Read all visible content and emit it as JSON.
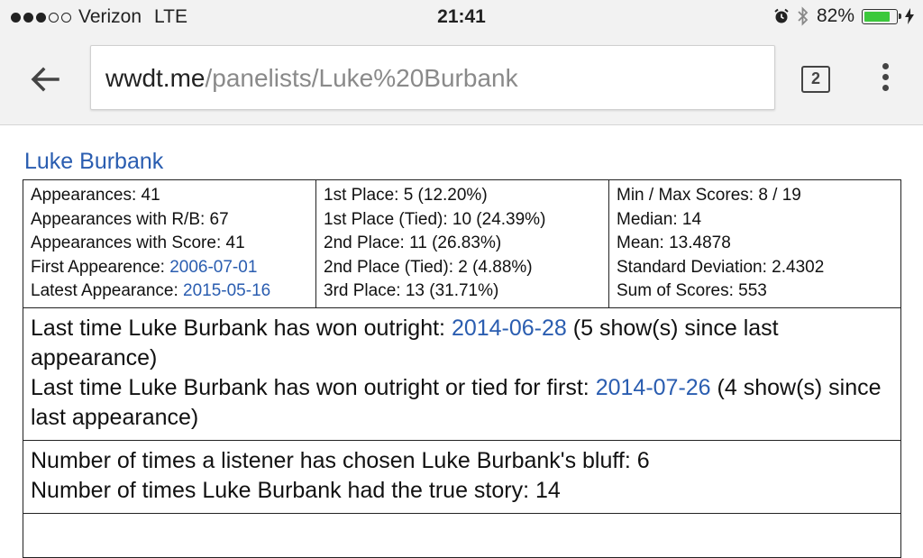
{
  "status_bar": {
    "carrier": "Verizon",
    "network": "LTE",
    "time": "21:41",
    "battery_percent": "82%",
    "battery_level": 0.82,
    "signal_bars_filled": 3,
    "signal_bars_total": 5,
    "icons": [
      "alarm-icon",
      "bluetooth-icon",
      "charging-bolt-icon"
    ]
  },
  "browser": {
    "url_host": "wwdt.me",
    "url_path": "/panelists/Luke%20Burbank",
    "tab_count": "2",
    "icons": [
      "back-arrow-icon",
      "tabs-icon",
      "overflow-menu-icon"
    ]
  },
  "page": {
    "title": "Luke Burbank",
    "col1": {
      "appearances": "Appearances: 41",
      "appearances_rb": "Appearances with R/B: 67",
      "appearances_score": "Appearances with Score: 41",
      "first_label": "First Appearence: ",
      "first_date": "2006-07-01",
      "latest_label": "Latest Appearance: ",
      "latest_date": "2015-05-16"
    },
    "col2": {
      "first_place": "1st Place: 5 (12.20%)",
      "first_place_tied": "1st Place (Tied): 10 (24.39%)",
      "second_place": "2nd Place: 11 (26.83%)",
      "second_place_tied": "2nd Place (Tied): 2 (4.88%)",
      "third_place": "3rd Place: 13 (31.71%)"
    },
    "col3": {
      "min_max": "Min / Max Scores: 8 / 19",
      "median": "Median: 14",
      "mean": "Mean: 13.4878",
      "std_dev": "Standard Deviation: 2.4302",
      "sum": "Sum of Scores: 553"
    },
    "wins": {
      "outright_prefix": "Last time Luke Burbank has won outright: ",
      "outright_date": "2014-06-28",
      "outright_suffix": " (5 show(s) since last appearance)",
      "tied_prefix": "Last time Luke Burbank has won outright or tied for first: ",
      "tied_date": "2014-07-26",
      "tied_suffix": " (4 show(s) since last appearance)"
    },
    "bluff": {
      "chosen": "Number of times a listener has chosen Luke Burbank's bluff: 6",
      "true_story": "Number of times Luke Burbank had the true story: 14"
    }
  },
  "colors": {
    "link": "#2a5db0",
    "battery": "#3cc83c",
    "chrome": "#f2f2f2"
  }
}
